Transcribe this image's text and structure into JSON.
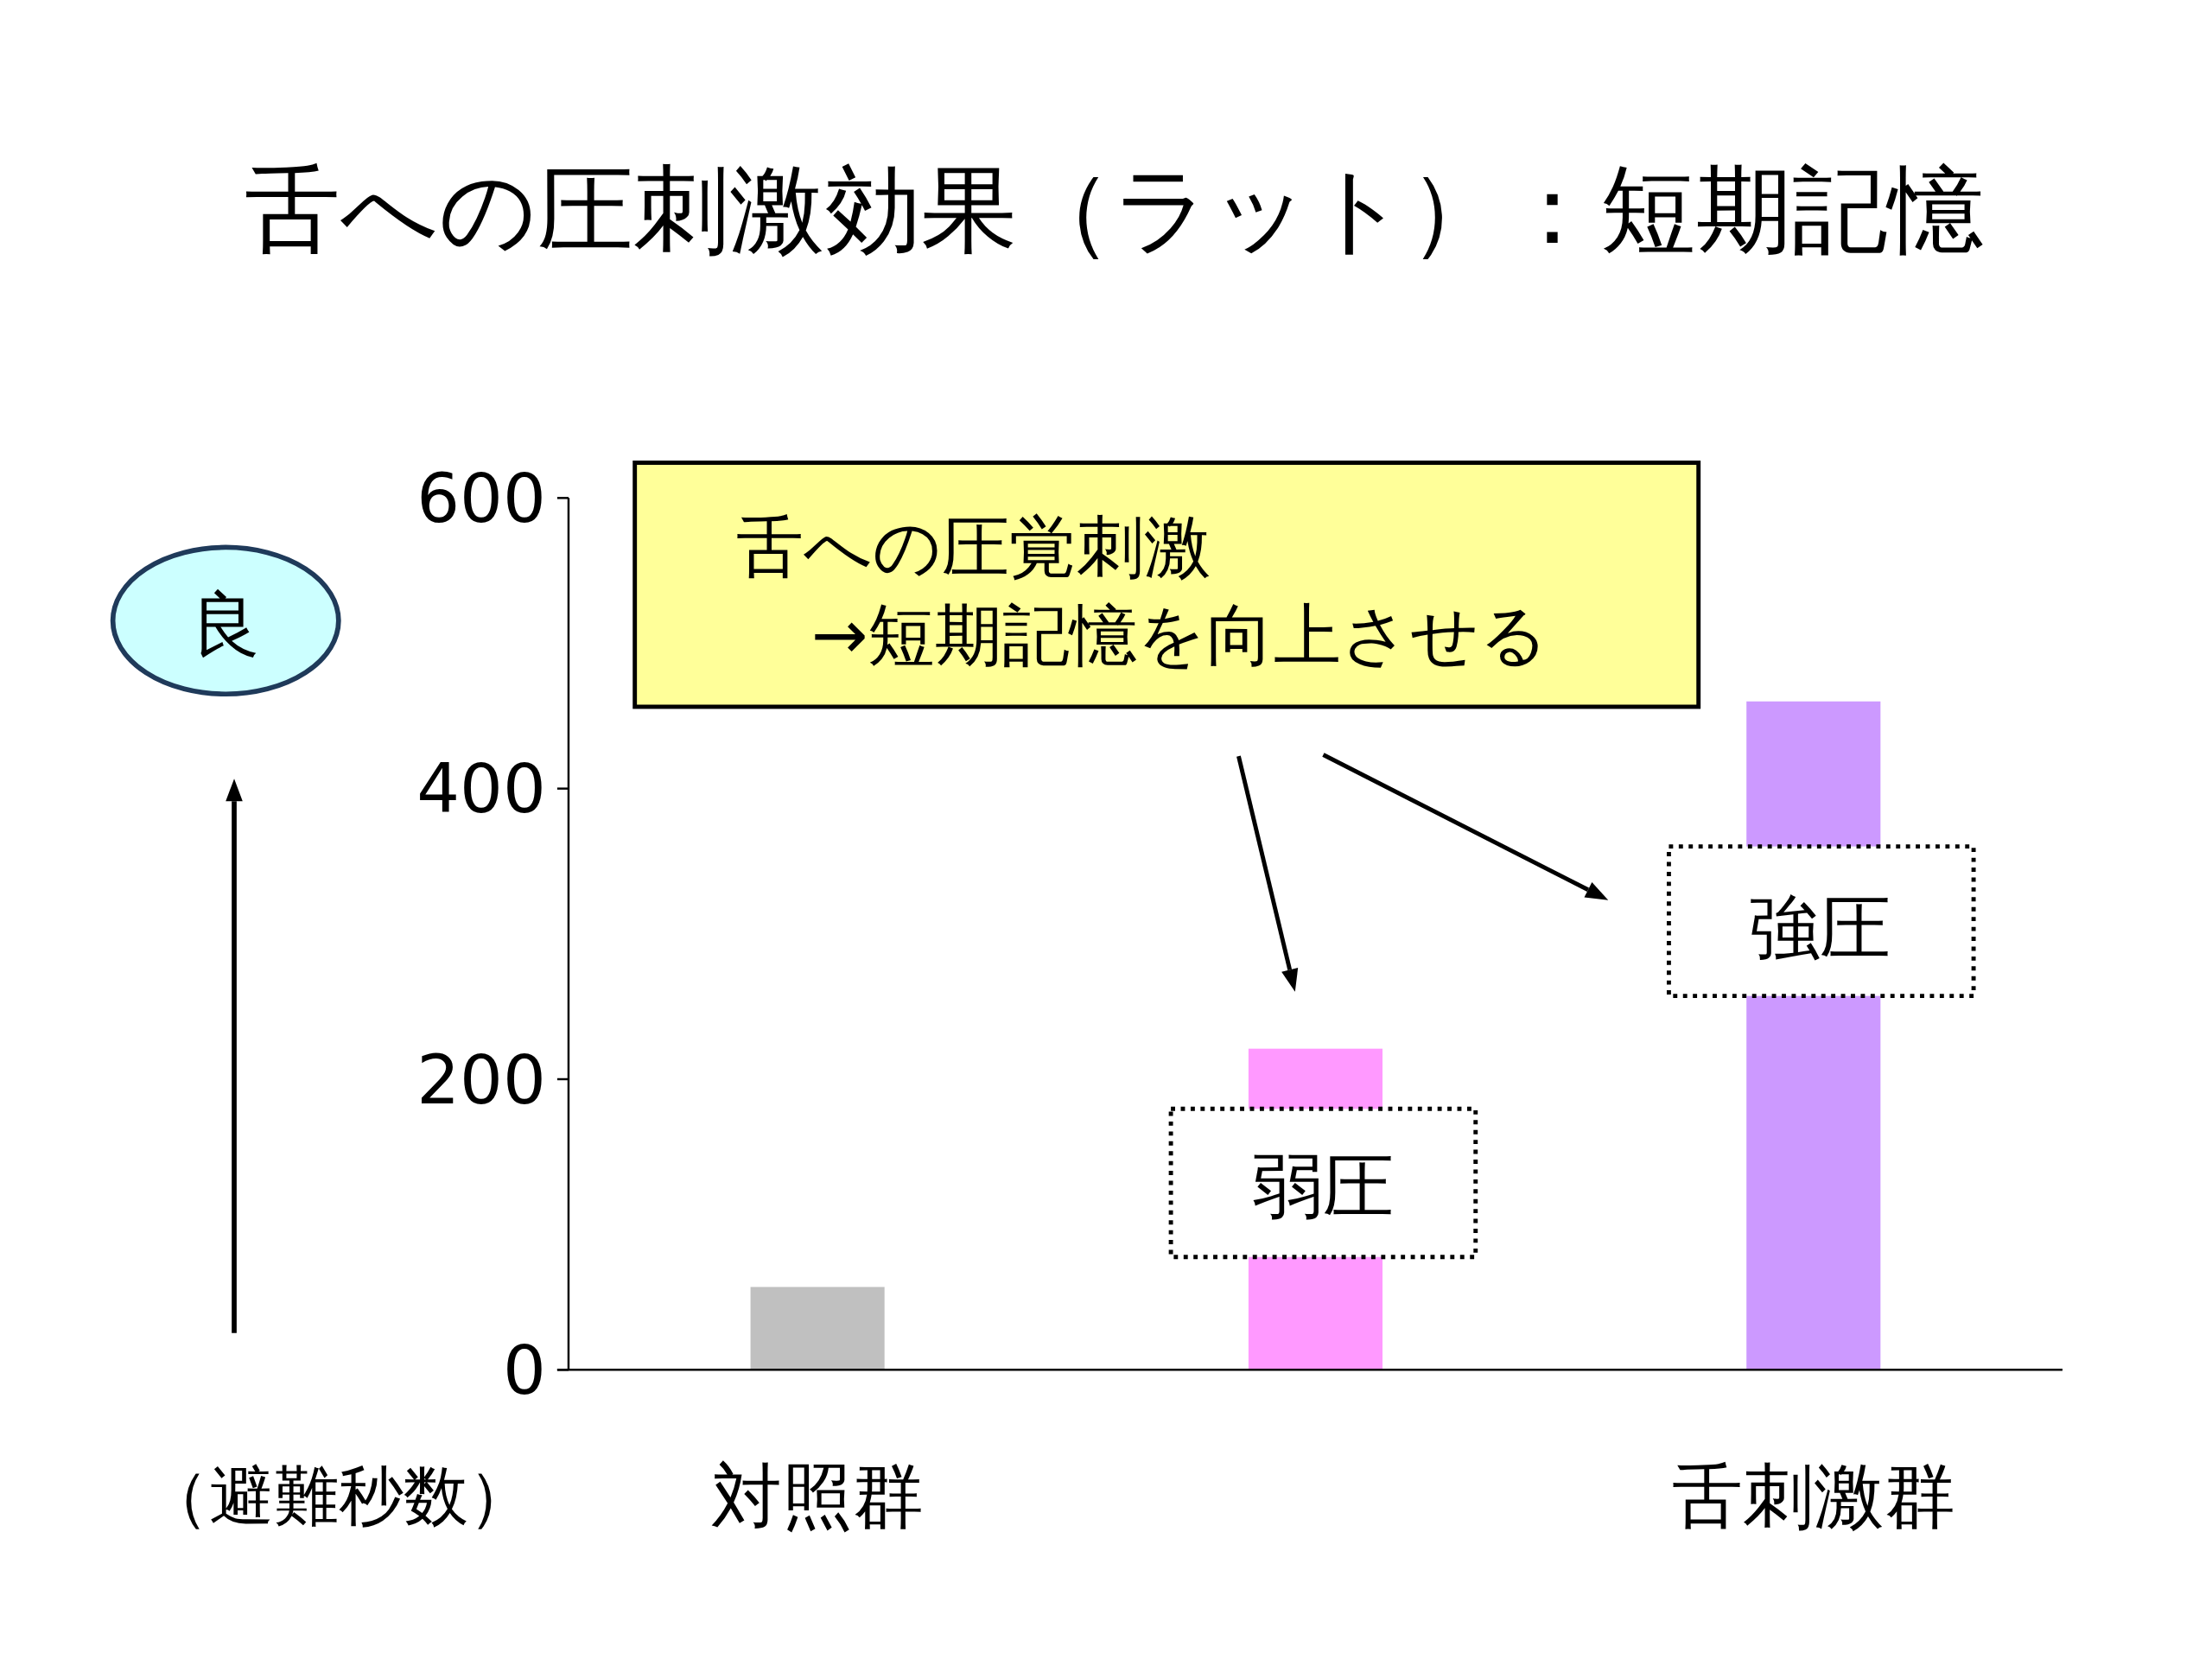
{
  "chart_data": {
    "type": "bar",
    "title": "舌への圧刺激効果（ラット）：短期記憶",
    "ylabel": "（避難秒数）",
    "categories": [
      "対照群",
      null,
      "舌刺激群"
    ],
    "values": [
      57,
      221,
      460
    ],
    "colors": [
      "#c0c0c0",
      "#ff99ff",
      "#cc99ff"
    ],
    "ylim": [
      0,
      600
    ],
    "yticks": [
      0,
      200,
      400,
      600
    ],
    "annotations": [
      "舌への圧覚刺激",
      "→短期記憶を向上させる",
      "弱圧",
      "強圧",
      "良"
    ]
  }
}
